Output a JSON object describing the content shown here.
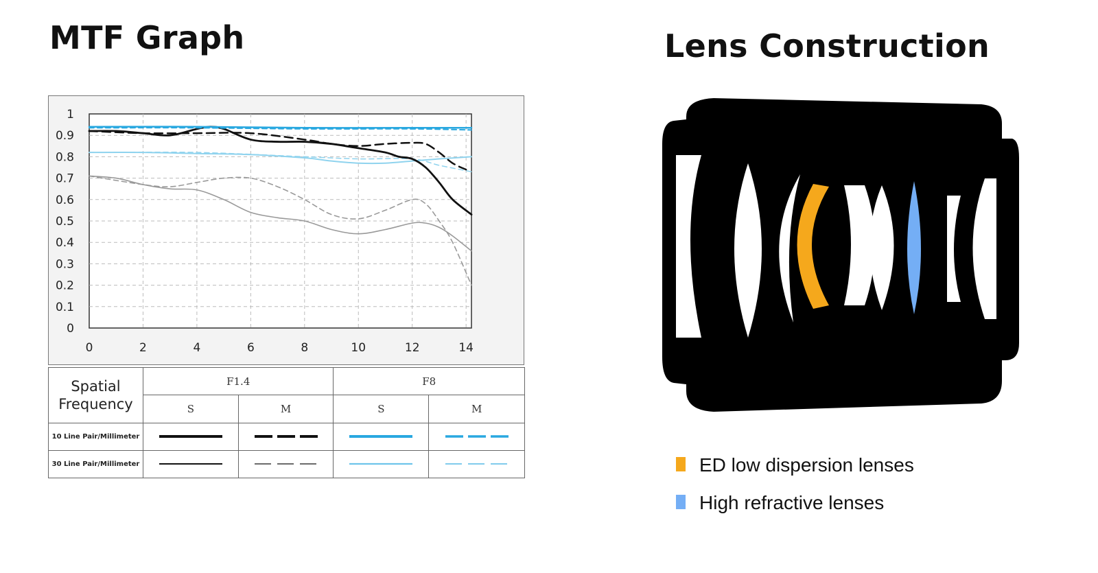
{
  "titles": {
    "mtf": "MTF Graph",
    "lens": "Lens Construction"
  },
  "colors": {
    "f14": "#111111",
    "f14_30": "#999999",
    "f8_10": "#29a8e0",
    "f8_30": "#8fd3ee",
    "ed_lens": "#f5a81c",
    "high_refractive_lens": "#74aef5",
    "lens_body": "#000000"
  },
  "chart_data": {
    "type": "line",
    "title": "MTF Graph",
    "xlabel": "",
    "ylabel": "",
    "xlim": [
      0,
      14.2
    ],
    "ylim": [
      0,
      1
    ],
    "xticks": [
      0,
      2,
      4,
      6,
      8,
      10,
      12,
      14
    ],
    "yticks": [
      0,
      0.1,
      0.2,
      0.3,
      0.4,
      0.5,
      0.6,
      0.7,
      0.8,
      0.9,
      1
    ],
    "ytick_labels": [
      "0",
      "0.1",
      "0.2",
      "0.3",
      "0.4",
      "0.5",
      "0.6",
      "0.7",
      "0.8",
      "0.9",
      "1"
    ],
    "grid": true,
    "series": [
      {
        "aperture": "F1.4",
        "direction": "S",
        "frequency": "10 Line Pair/Millimeter",
        "color": "#111111",
        "dash": "solid",
        "width": 2.8,
        "x": [
          0,
          1,
          2,
          3,
          4,
          4.5,
          5,
          6,
          7,
          8,
          9,
          10,
          11,
          11.5,
          12,
          12.5,
          13,
          13.5,
          14.2
        ],
        "y": [
          0.92,
          0.92,
          0.91,
          0.9,
          0.93,
          0.94,
          0.93,
          0.88,
          0.87,
          0.87,
          0.86,
          0.84,
          0.82,
          0.8,
          0.79,
          0.75,
          0.68,
          0.6,
          0.53
        ]
      },
      {
        "aperture": "F1.4",
        "direction": "M",
        "frequency": "10 Line Pair/Millimeter",
        "color": "#111111",
        "dash": "dashed",
        "width": 2.5,
        "x": [
          0,
          2,
          4,
          6,
          8,
          9,
          10,
          11,
          12,
          12.5,
          13,
          13.5,
          14
        ],
        "y": [
          0.92,
          0.91,
          0.91,
          0.91,
          0.88,
          0.86,
          0.85,
          0.86,
          0.865,
          0.86,
          0.82,
          0.77,
          0.74
        ]
      },
      {
        "aperture": "F8",
        "direction": "S",
        "frequency": "10 Line Pair/Millimeter",
        "color": "#29a8e0",
        "dash": "solid",
        "width": 2.5,
        "x": [
          0,
          4,
          8,
          12,
          14.2
        ],
        "y": [
          0.94,
          0.94,
          0.935,
          0.935,
          0.935
        ]
      },
      {
        "aperture": "F8",
        "direction": "M",
        "frequency": "10 Line Pair/Millimeter",
        "color": "#29a8e0",
        "dash": "dashed",
        "width": 2,
        "x": [
          0,
          4,
          8,
          12,
          14.2
        ],
        "y": [
          0.935,
          0.935,
          0.93,
          0.93,
          0.925
        ]
      },
      {
        "aperture": "F1.4",
        "direction": "S",
        "frequency": "30 Line Pair/Millimeter",
        "color": "#999999",
        "dash": "solid",
        "width": 1.6,
        "x": [
          0,
          1,
          2,
          3,
          4,
          5,
          6,
          7,
          8,
          9,
          10,
          11,
          12,
          12.5,
          13,
          13.5,
          14.2
        ],
        "y": [
          0.71,
          0.7,
          0.67,
          0.65,
          0.645,
          0.6,
          0.54,
          0.515,
          0.5,
          0.46,
          0.44,
          0.46,
          0.49,
          0.49,
          0.47,
          0.43,
          0.36
        ]
      },
      {
        "aperture": "F1.4",
        "direction": "M",
        "frequency": "30 Line Pair/Millimeter",
        "color": "#999999",
        "dash": "dashed",
        "width": 1.6,
        "x": [
          0,
          2,
          3,
          4,
          5,
          6,
          7,
          8,
          9,
          10,
          11,
          12,
          12.5,
          13,
          13.5,
          14.2
        ],
        "y": [
          0.71,
          0.67,
          0.66,
          0.68,
          0.7,
          0.7,
          0.66,
          0.6,
          0.53,
          0.51,
          0.55,
          0.6,
          0.58,
          0.5,
          0.4,
          0.2
        ]
      },
      {
        "aperture": "F8",
        "direction": "S",
        "frequency": "30 Line Pair/Millimeter",
        "color": "#8fd3ee",
        "dash": "solid",
        "width": 2,
        "x": [
          0,
          2,
          4,
          6,
          8,
          9,
          10,
          11,
          12,
          13,
          14.2
        ],
        "y": [
          0.82,
          0.82,
          0.815,
          0.81,
          0.795,
          0.78,
          0.77,
          0.77,
          0.78,
          0.79,
          0.8
        ]
      },
      {
        "aperture": "F8",
        "direction": "M",
        "frequency": "30 Line Pair/Millimeter",
        "color": "#8fd3ee",
        "dash": "dashed",
        "width": 1.5,
        "x": [
          0,
          4,
          8,
          10,
          12,
          13,
          14.2
        ],
        "y": [
          0.82,
          0.82,
          0.8,
          0.79,
          0.79,
          0.76,
          0.73
        ]
      }
    ]
  },
  "legend_table": {
    "spatial_frequency_label": "Spatial Frequency",
    "apertures": [
      "F1.4",
      "F8"
    ],
    "directions": [
      "S",
      "M",
      "S",
      "M"
    ],
    "rows": [
      {
        "label": "10 Line Pair/Millimeter"
      },
      {
        "label": "30 Line Pair/Millimeter"
      }
    ]
  },
  "lens_legend": {
    "ed": "ED low dispersion lenses",
    "high_refractive": "High refractive lenses"
  }
}
